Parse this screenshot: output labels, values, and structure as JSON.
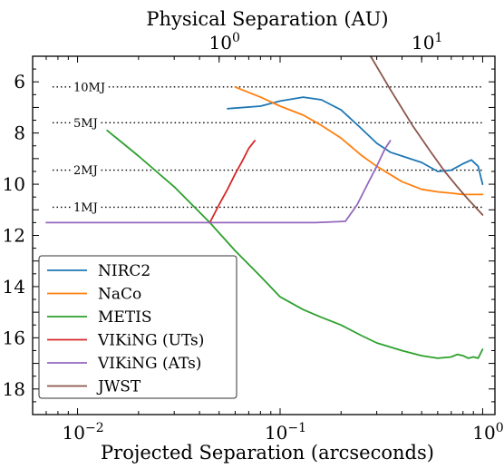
{
  "chart_data": {
    "type": "line",
    "xlabel": "Projected Separation (arcseconds)",
    "x2label": "Physical Separation (AU)",
    "ylabel": "",
    "xscale": "log",
    "xlim": [
      0.006,
      1.15
    ],
    "ylim": [
      19,
      5
    ],
    "y_inverted": true,
    "grid": false,
    "legend_position": "lower-left",
    "x_ticks": [
      {
        "value": 0.01,
        "base": "10",
        "exp": "−2"
      },
      {
        "value": 0.1,
        "base": "10",
        "exp": "−1"
      },
      {
        "value": 1,
        "base": "10",
        "exp": "0"
      }
    ],
    "x2_ticks": [
      {
        "value": 0.05,
        "base": "10",
        "exp": "0"
      },
      {
        "value": 0.5,
        "base": "10",
        "exp": "1"
      }
    ],
    "y_ticks": [
      6,
      8,
      10,
      12,
      14,
      16,
      18
    ],
    "reference_lines": [
      {
        "label": "10MJ",
        "y": 6.2
      },
      {
        "label": "5MJ",
        "y": 7.6
      },
      {
        "label": "2MJ",
        "y": 9.45
      },
      {
        "label": "1MJ",
        "y": 10.9
      }
    ],
    "series": [
      {
        "name": "NIRC2",
        "color": "#1f77b4",
        "x": [
          0.055,
          0.08,
          0.1,
          0.13,
          0.16,
          0.2,
          0.25,
          0.3,
          0.35,
          0.4,
          0.5,
          0.6,
          0.7,
          0.8,
          0.88,
          0.95,
          1.0
        ],
        "y": [
          7.05,
          6.95,
          6.75,
          6.6,
          6.7,
          7.1,
          7.8,
          8.4,
          8.75,
          8.9,
          9.15,
          9.5,
          9.45,
          9.2,
          9.05,
          9.3,
          10.0
        ]
      },
      {
        "name": "NaCo",
        "color": "#ff7f0e",
        "x": [
          0.06,
          0.08,
          0.1,
          0.13,
          0.16,
          0.2,
          0.25,
          0.3,
          0.4,
          0.5,
          0.6,
          0.7,
          0.8,
          0.9,
          1.0
        ],
        "y": [
          6.2,
          6.6,
          6.95,
          7.3,
          7.7,
          8.2,
          8.85,
          9.3,
          9.9,
          10.2,
          10.3,
          10.35,
          10.4,
          10.4,
          10.4
        ]
      },
      {
        "name": "METIS",
        "color": "#2ca02c",
        "x": [
          0.014,
          0.02,
          0.03,
          0.045,
          0.06,
          0.08,
          0.1,
          0.13,
          0.16,
          0.2,
          0.25,
          0.3,
          0.4,
          0.5,
          0.6,
          0.7,
          0.75,
          0.8,
          0.85,
          0.9,
          0.95,
          1.0
        ],
        "y": [
          7.9,
          8.9,
          10.1,
          11.5,
          12.6,
          13.6,
          14.4,
          14.9,
          15.2,
          15.5,
          15.9,
          16.2,
          16.5,
          16.7,
          16.8,
          16.75,
          16.65,
          16.7,
          16.8,
          16.75,
          16.8,
          16.45
        ]
      },
      {
        "name": "VIKiNG (UTs)",
        "color": "#d62728",
        "x": [
          0.045,
          0.05,
          0.055,
          0.06,
          0.065,
          0.07,
          0.075
        ],
        "y": [
          11.5,
          10.8,
          10.2,
          9.6,
          9.1,
          8.6,
          8.3
        ]
      },
      {
        "name": "VIKiNG (ATs)",
        "color": "#9467bd",
        "x": [
          0.007,
          0.01,
          0.02,
          0.05,
          0.1,
          0.15,
          0.21,
          0.24,
          0.27,
          0.3,
          0.33,
          0.35
        ],
        "y": [
          11.5,
          11.5,
          11.5,
          11.5,
          11.5,
          11.5,
          11.45,
          10.8,
          10.0,
          9.3,
          8.6,
          8.3
        ]
      },
      {
        "name": "JWST",
        "color": "#8c564b",
        "x": [
          0.28,
          0.35,
          0.45,
          0.55,
          0.65,
          0.75,
          0.85,
          1.0
        ],
        "y": [
          5.0,
          6.3,
          7.7,
          8.7,
          9.5,
          10.1,
          10.6,
          11.2
        ]
      }
    ]
  }
}
